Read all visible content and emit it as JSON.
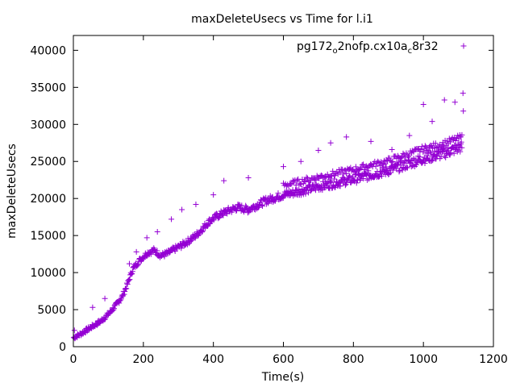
{
  "chart_data": {
    "type": "scatter",
    "title": "maxDeleteUsecs vs Time for l.i1",
    "xlabel": "Time(s)",
    "ylabel": "maxDeleteUsecs",
    "xlim": [
      0,
      1200
    ],
    "ylim": [
      0,
      42000
    ],
    "xticks": [
      0,
      200,
      400,
      600,
      800,
      1000,
      1200
    ],
    "yticks": [
      0,
      5000,
      10000,
      15000,
      20000,
      25000,
      30000,
      35000,
      40000
    ],
    "grid": false,
    "legend_position": "top-right",
    "series": [
      {
        "name": "pg172_o2nofp.cx10a_c8r32",
        "legend_parts": [
          {
            "text": "pg172",
            "sub": false
          },
          {
            "text": "o",
            "sub": true
          },
          {
            "text": "2nofp.cx10a",
            "sub": false
          },
          {
            "text": "c",
            "sub": true
          },
          {
            "text": "8r32",
            "sub": false
          }
        ],
        "color": "#9400d3",
        "marker": "plus",
        "curve": [
          [
            0,
            1200
          ],
          [
            20,
            1700
          ],
          [
            40,
            2300
          ],
          [
            60,
            2900
          ],
          [
            80,
            3500
          ],
          [
            100,
            4400
          ],
          [
            120,
            5500
          ],
          [
            140,
            6800
          ],
          [
            155,
            8500
          ],
          [
            170,
            10500
          ],
          [
            190,
            11700
          ],
          [
            210,
            12600
          ],
          [
            230,
            13000
          ],
          [
            250,
            12300
          ],
          [
            270,
            12600
          ],
          [
            290,
            13200
          ],
          [
            310,
            13700
          ],
          [
            330,
            14300
          ],
          [
            350,
            15000
          ],
          [
            370,
            16000
          ],
          [
            390,
            17000
          ],
          [
            410,
            17600
          ],
          [
            440,
            18300
          ],
          [
            470,
            18800
          ],
          [
            500,
            18500
          ],
          [
            520,
            19000
          ],
          [
            550,
            19700
          ],
          [
            600,
            20500
          ],
          [
            650,
            21000
          ],
          [
            700,
            21600
          ],
          [
            750,
            22100
          ],
          [
            800,
            22600
          ],
          [
            850,
            23200
          ],
          [
            900,
            23800
          ],
          [
            950,
            24600
          ],
          [
            1000,
            25400
          ],
          [
            1050,
            26000
          ],
          [
            1110,
            27000
          ]
        ],
        "outliers": [
          [
            3,
            2200
          ],
          [
            55,
            5300
          ],
          [
            90,
            6500
          ],
          [
            160,
            11200
          ],
          [
            180,
            12800
          ],
          [
            210,
            14700
          ],
          [
            240,
            15500
          ],
          [
            280,
            17200
          ],
          [
            310,
            18500
          ],
          [
            350,
            19200
          ],
          [
            400,
            20500
          ],
          [
            430,
            22400
          ],
          [
            500,
            22800
          ],
          [
            600,
            24300
          ],
          [
            650,
            25000
          ],
          [
            700,
            26500
          ],
          [
            735,
            27500
          ],
          [
            780,
            28300
          ],
          [
            850,
            27700
          ],
          [
            910,
            26600
          ],
          [
            960,
            28500
          ],
          [
            1000,
            32700
          ],
          [
            1025,
            30400
          ],
          [
            1060,
            33300
          ],
          [
            1090,
            33000
          ],
          [
            1113,
            34200
          ],
          [
            1114,
            31800
          ]
        ],
        "upper_band": {
          "from": 600,
          "to": 1110,
          "offset": 1300
        }
      }
    ]
  }
}
